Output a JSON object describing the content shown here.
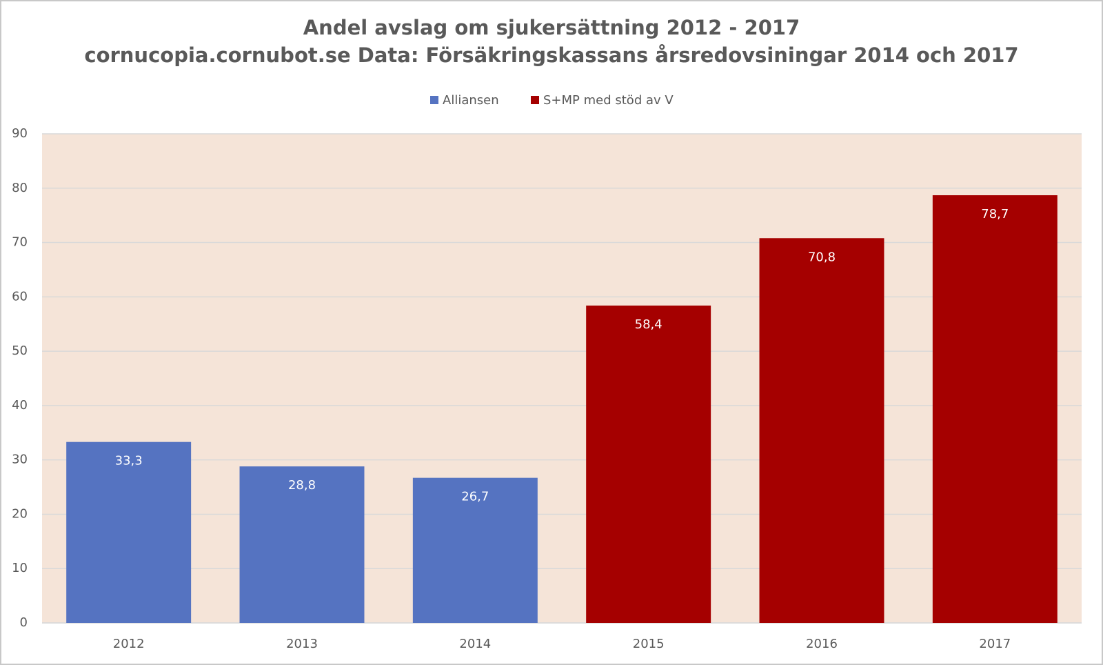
{
  "chart_data": {
    "type": "bar",
    "title": "Andel avslag om sjukersättning 2012 - 2017",
    "subtitle": "cornucopia.cornubot.se Data: Försäkringskassans årsredovsiningar 2014 och 2017",
    "categories": [
      "2012",
      "2013",
      "2014",
      "2015",
      "2016",
      "2017"
    ],
    "series": [
      {
        "name": "Alliansen",
        "color": "#5573c1",
        "values": [
          33.3,
          28.8,
          26.7,
          null,
          null,
          null
        ],
        "value_labels": [
          "33,3",
          "28,8",
          "26,7",
          null,
          null,
          null
        ]
      },
      {
        "name": "S+MP med stöd av V",
        "color": "#a50000",
        "values": [
          null,
          null,
          null,
          58.4,
          70.8,
          78.7
        ],
        "value_labels": [
          null,
          null,
          null,
          "58,4",
          "70,8",
          "78,7"
        ]
      }
    ],
    "ylim": [
      0,
      90
    ],
    "yticks": [
      0,
      10,
      20,
      30,
      40,
      50,
      60,
      70,
      80,
      90
    ],
    "grid": true,
    "legend": "top",
    "plot_background": "#f5e4d8"
  }
}
